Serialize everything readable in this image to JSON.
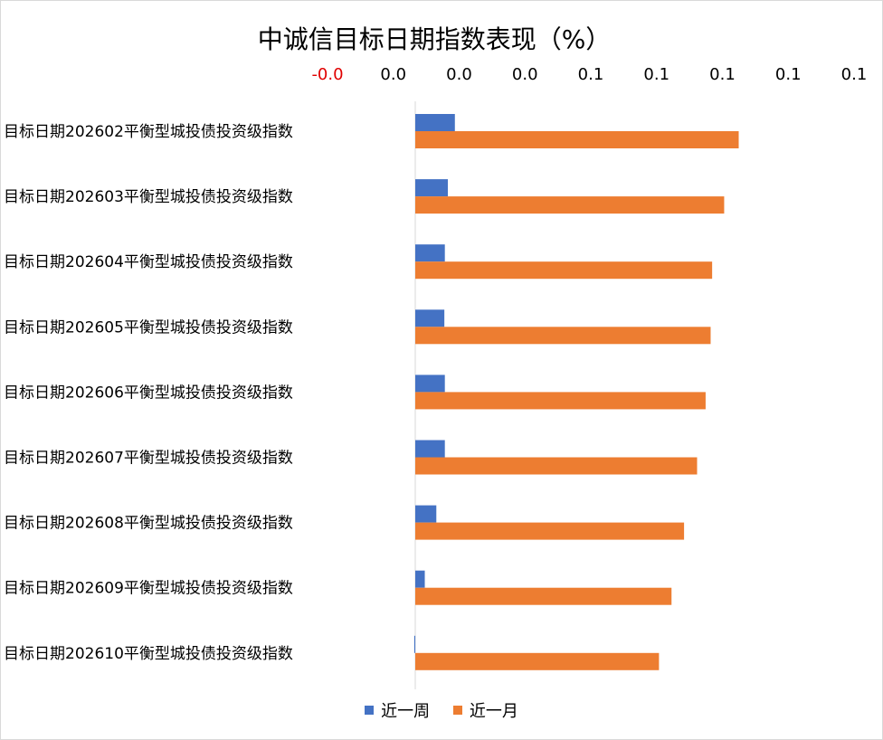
{
  "chart_data": {
    "type": "bar",
    "orientation": "horizontal",
    "title": "中诚信目标日期指数表现（%）",
    "axis_position": "top",
    "tick_labels": [
      "-0.0",
      "0.0",
      "0.0",
      "0.0",
      "0.1",
      "0.1",
      "0.1",
      "0.1",
      "0.1"
    ],
    "xlim": [
      -0.0175,
      0.0875
    ],
    "categories": [
      "目标日期202602平衡型城投债投资级指数",
      "目标日期202603平衡型城投债投资级指数",
      "目标日期202604平衡型城投债投资级指数",
      "目标日期202605平衡型城投债投资级指数",
      "目标日期202606平衡型城投债投资级指数",
      "目标日期202607平衡型城投债投资级指数",
      "目标日期202608平衡型城投债投资级指数",
      "目标日期202609平衡型城投债投资级指数",
      "目标日期202610平衡型城投债投资级指数"
    ],
    "series": [
      {
        "name": "近一周",
        "color": "#4472c4",
        "values": [
          0.0079,
          0.0065,
          0.0059,
          0.0058,
          0.0059,
          0.0059,
          0.0042,
          0.0019,
          -0.0002
        ]
      },
      {
        "name": "近一月",
        "color": "#ed7d31",
        "values": [
          0.0645,
          0.0616,
          0.0592,
          0.0589,
          0.0579,
          0.0562,
          0.0536,
          0.0511,
          0.0486
        ]
      }
    ],
    "legend_position": "bottom",
    "grid": false
  }
}
